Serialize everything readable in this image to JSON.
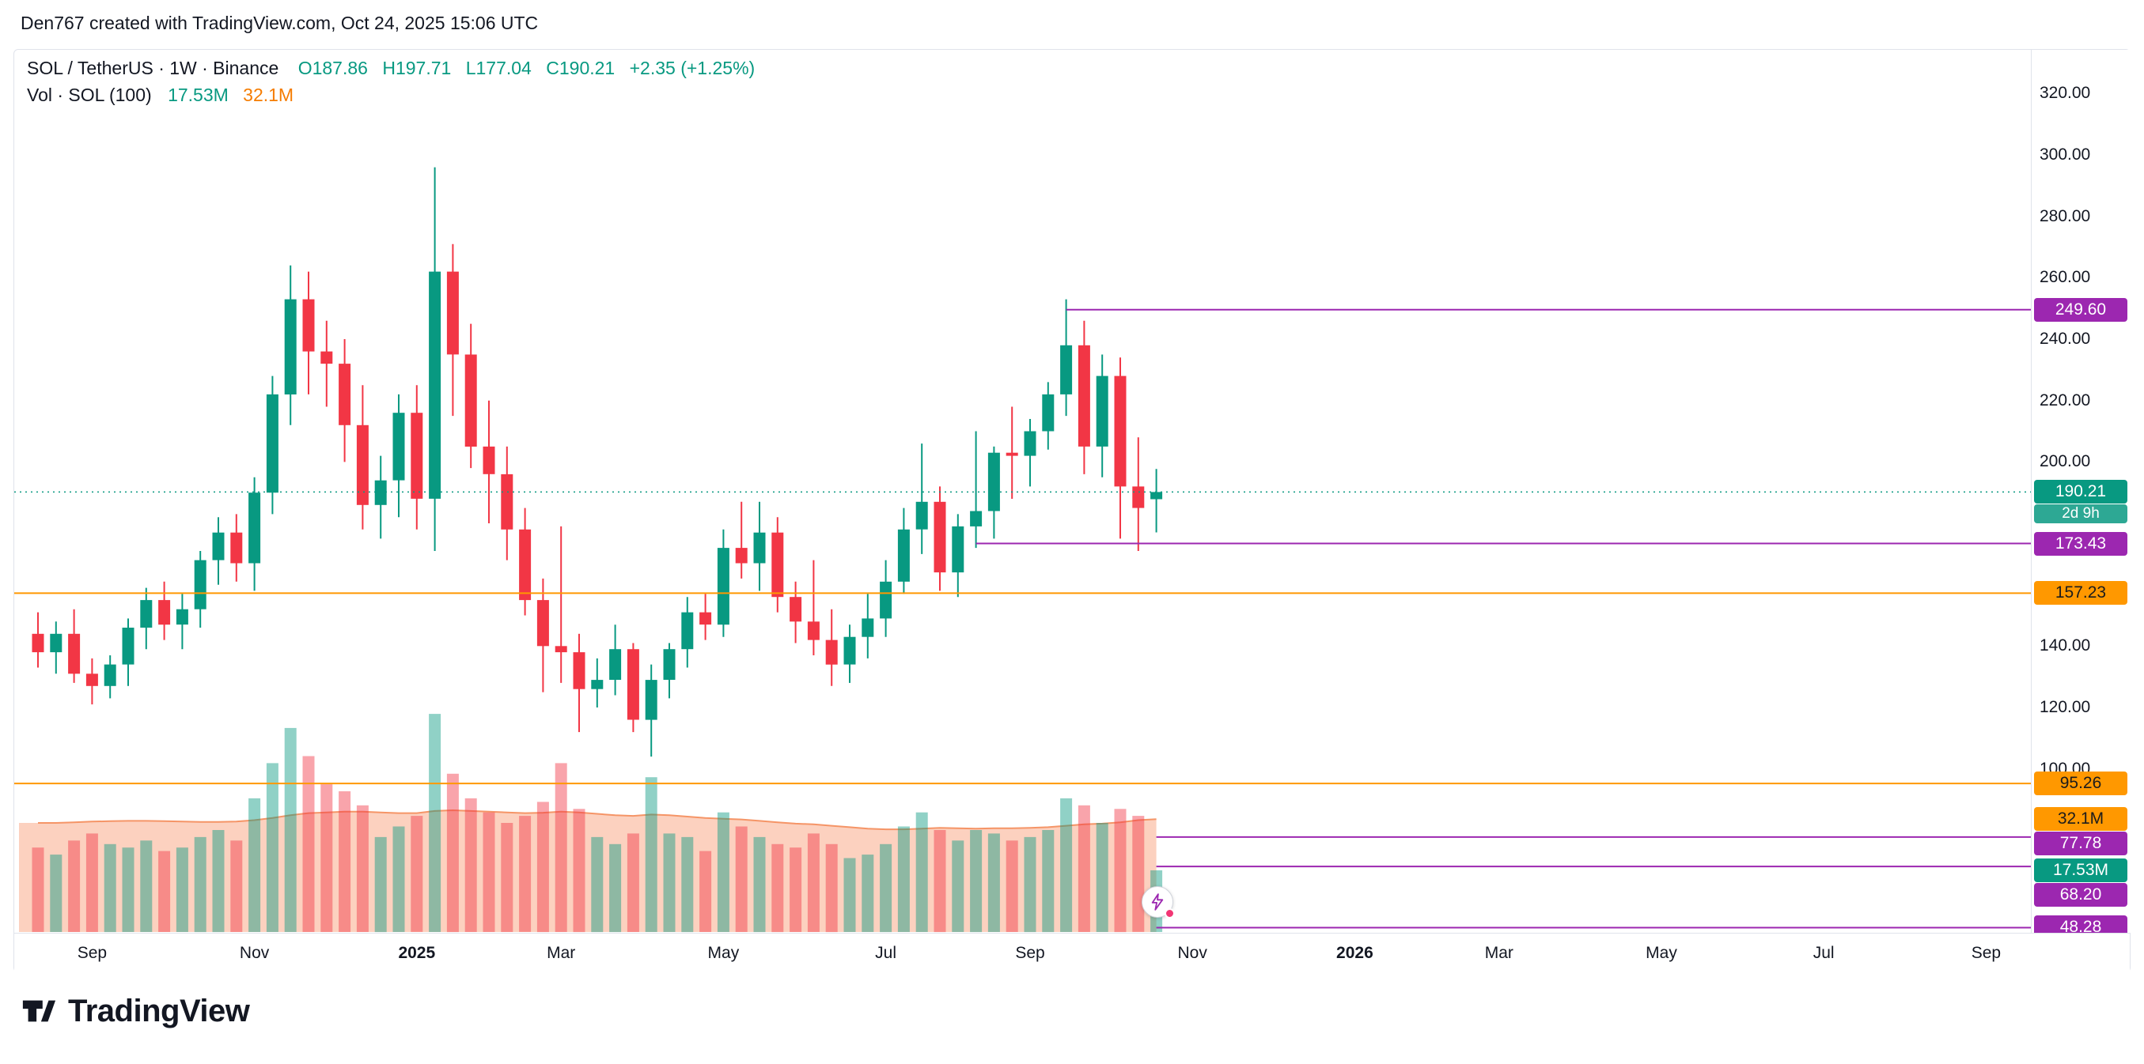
{
  "header": {
    "attribution": "Den767 created with TradingView.com, Oct 24, 2025 15:06 UTC"
  },
  "legend": {
    "title": "SOL / TetherUS · 1W · Binance",
    "ohlc": [
      {
        "label": "O",
        "value": "187.86"
      },
      {
        "label": "H",
        "value": "197.71"
      },
      {
        "label": "L",
        "value": "177.04"
      },
      {
        "label": "C",
        "value": "190.21"
      }
    ],
    "change": "+2.35 (+1.25%)",
    "volume_label": "Vol · SOL (100)",
    "volume_current": "17.53M",
    "volume_ma": "32.1M"
  },
  "price_axis": {
    "ticks": [
      320,
      300,
      280,
      260,
      240,
      220,
      200,
      140,
      120,
      100
    ],
    "badges": [
      {
        "text": "249.60",
        "kind": "purple",
        "price": 249.6
      },
      {
        "text": "190.21",
        "kind": "teal",
        "price": 190.21,
        "countdown": "2d 9h"
      },
      {
        "text": "173.43",
        "kind": "purple",
        "price": 173.43
      },
      {
        "text": "157.23",
        "kind": "orange",
        "price": 157.23
      },
      {
        "text": "95.26",
        "kind": "orange",
        "price": 95.26
      },
      {
        "text": "32.1M",
        "kind": "orange",
        "volume_m": 32.1
      },
      {
        "text": "77.78",
        "kind": "purple",
        "price": 77.78
      },
      {
        "text": "17.53M",
        "kind": "teal",
        "volume_m": 17.53
      },
      {
        "text": "68.20",
        "kind": "purple",
        "price": 68.2
      },
      {
        "text": "48.28",
        "kind": "purple",
        "price": 48.28
      }
    ]
  },
  "time_axis": {
    "labels": [
      {
        "text": "Sep",
        "week_index": 3
      },
      {
        "text": "Nov",
        "week_index": 12
      },
      {
        "text": "2025",
        "week_index": 21,
        "bold": true
      },
      {
        "text": "Mar",
        "week_index": 29
      },
      {
        "text": "May",
        "week_index": 38
      },
      {
        "text": "Jul",
        "week_index": 47
      },
      {
        "text": "Sep",
        "week_index": 55
      },
      {
        "text": "Nov",
        "week_index": 64
      },
      {
        "text": "2026",
        "week_index": 73,
        "bold": true
      },
      {
        "text": "Mar",
        "week_index": 81
      },
      {
        "text": "May",
        "week_index": 90
      },
      {
        "text": "Jul",
        "week_index": 99
      },
      {
        "text": "Sep",
        "week_index": 108
      }
    ]
  },
  "footer": {
    "brand": "TradingView"
  },
  "colors": {
    "up": "#089981",
    "down": "#f23645",
    "vol_up": "rgba(8,153,129,0.45)",
    "vol_down": "rgba(242,54,69,0.45)",
    "vol_ma_fill": "rgba(245,124,72,0.35)",
    "vol_ma_line": "rgba(244,140,90,0.9)",
    "purple": "#9c27b0",
    "orange": "#ff9800",
    "axis_text": "#131722"
  },
  "chart_data": {
    "type": "candlestick",
    "symbol": "SOL/USDT",
    "exchange": "Binance",
    "interval": "1W",
    "title": "SOL / TetherUS · 1W · Binance",
    "current_price": 190.21,
    "countdown": "2d 9h",
    "ohlc_current": {
      "open": 187.86,
      "high": 197.71,
      "low": 177.04,
      "close": 190.21,
      "change": 2.35,
      "change_pct": 1.25
    },
    "volume_current_m": 17.53,
    "volume_ma_current_m": 32.1,
    "y_axis_ticks": [
      320,
      300,
      280,
      260,
      240,
      220,
      200,
      140,
      120,
      100
    ],
    "candles_format": [
      "week_start",
      "open",
      "high",
      "low",
      "close"
    ],
    "candles": [
      [
        "2024-08-12",
        144,
        151,
        133,
        138
      ],
      [
        "2024-08-19",
        138,
        148,
        131,
        144
      ],
      [
        "2024-08-26",
        144,
        152,
        128,
        131
      ],
      [
        "2024-09-02",
        131,
        136,
        121,
        127
      ],
      [
        "2024-09-09",
        127,
        137,
        123,
        134
      ],
      [
        "2024-09-16",
        134,
        149,
        127,
        146
      ],
      [
        "2024-09-23",
        146,
        159,
        139,
        155
      ],
      [
        "2024-09-30",
        155,
        161,
        142,
        147
      ],
      [
        "2024-10-07",
        147,
        157,
        139,
        152
      ],
      [
        "2024-10-14",
        152,
        171,
        146,
        168
      ],
      [
        "2024-10-21",
        168,
        182,
        160,
        177
      ],
      [
        "2024-10-28",
        177,
        183,
        161,
        167
      ],
      [
        "2024-11-04",
        167,
        195,
        158,
        190
      ],
      [
        "2024-11-11",
        190,
        228,
        183,
        222
      ],
      [
        "2024-11-18",
        222,
        264,
        212,
        253
      ],
      [
        "2024-11-25",
        253,
        262,
        222,
        236
      ],
      [
        "2024-12-02",
        236,
        246,
        218,
        232
      ],
      [
        "2024-12-09",
        232,
        240,
        200,
        212
      ],
      [
        "2024-12-16",
        212,
        225,
        178,
        186
      ],
      [
        "2024-12-23",
        186,
        202,
        175,
        194
      ],
      [
        "2024-12-30",
        194,
        222,
        182,
        216
      ],
      [
        "2025-01-06",
        216,
        225,
        178,
        188
      ],
      [
        "2025-01-13",
        188,
        296,
        171,
        262
      ],
      [
        "2025-01-20",
        262,
        271,
        215,
        235
      ],
      [
        "2025-01-27",
        235,
        245,
        198,
        205
      ],
      [
        "2025-02-03",
        205,
        220,
        180,
        196
      ],
      [
        "2025-02-10",
        196,
        205,
        168,
        178
      ],
      [
        "2025-02-17",
        178,
        185,
        150,
        155
      ],
      [
        "2025-02-24",
        155,
        162,
        125,
        140
      ],
      [
        "2025-03-03",
        140,
        179,
        128,
        138
      ],
      [
        "2025-03-10",
        138,
        144,
        112,
        126
      ],
      [
        "2025-03-17",
        126,
        136,
        120,
        129
      ],
      [
        "2025-03-24",
        129,
        147,
        124,
        139
      ],
      [
        "2025-03-31",
        139,
        141,
        112,
        116
      ],
      [
        "2025-04-07",
        116,
        134,
        104,
        129
      ],
      [
        "2025-04-14",
        129,
        141,
        123,
        139
      ],
      [
        "2025-04-21",
        139,
        156,
        133,
        151
      ],
      [
        "2025-04-28",
        151,
        157,
        142,
        147
      ],
      [
        "2025-05-05",
        147,
        178,
        143,
        172
      ],
      [
        "2025-05-12",
        172,
        187,
        162,
        167
      ],
      [
        "2025-05-19",
        167,
        187,
        158,
        177
      ],
      [
        "2025-05-26",
        177,
        182,
        151,
        156
      ],
      [
        "2025-06-02",
        156,
        161,
        141,
        148
      ],
      [
        "2025-06-09",
        148,
        168,
        137,
        142
      ],
      [
        "2025-06-16",
        142,
        152,
        127,
        134
      ],
      [
        "2025-06-23",
        134,
        147,
        128,
        143
      ],
      [
        "2025-06-30",
        143,
        157,
        136,
        149
      ],
      [
        "2025-07-07",
        149,
        168,
        143,
        161
      ],
      [
        "2025-07-14",
        161,
        185,
        157,
        178
      ],
      [
        "2025-07-21",
        178,
        206,
        170,
        187
      ],
      [
        "2025-07-28",
        187,
        192,
        158,
        164
      ],
      [
        "2025-08-04",
        164,
        183,
        156,
        179
      ],
      [
        "2025-08-11",
        179,
        210,
        172,
        184
      ],
      [
        "2025-08-18",
        184,
        205,
        175,
        203
      ],
      [
        "2025-08-25",
        203,
        218,
        188,
        202
      ],
      [
        "2025-09-01",
        202,
        214,
        192,
        210
      ],
      [
        "2025-09-08",
        210,
        226,
        204,
        222
      ],
      [
        "2025-09-15",
        222,
        253,
        215,
        238
      ],
      [
        "2025-09-22",
        238,
        246,
        196,
        205
      ],
      [
        "2025-09-29",
        205,
        235,
        195,
        228
      ],
      [
        "2025-10-06",
        228,
        234,
        175,
        192
      ],
      [
        "2025-10-13",
        192,
        208,
        171,
        185
      ],
      [
        "2025-10-20",
        187.86,
        197.71,
        177.04,
        190.21
      ]
    ],
    "volumes_m": [
      24,
      22,
      26,
      28,
      25,
      24,
      26,
      23,
      24,
      27,
      29,
      26,
      38,
      48,
      58,
      50,
      42,
      40,
      36,
      27,
      30,
      33,
      62,
      45,
      38,
      34,
      31,
      33,
      37,
      48,
      35,
      27,
      25,
      28,
      44,
      28,
      27,
      23,
      34,
      30,
      27,
      25,
      24,
      28,
      25,
      21,
      22,
      25,
      30,
      34,
      29,
      26,
      29,
      28,
      26,
      27,
      29,
      38,
      36,
      31,
      35,
      33,
      17.53
    ],
    "vol_ma_m": [
      31.0,
      31.0,
      31.2,
      31.4,
      31.5,
      31.6,
      31.6,
      31.5,
      31.4,
      31.3,
      31.3,
      31.4,
      31.8,
      32.4,
      33.2,
      33.8,
      34.0,
      34.2,
      34.2,
      34.0,
      33.8,
      33.8,
      34.4,
      34.6,
      34.4,
      34.2,
      34.0,
      33.8,
      33.9,
      34.2,
      34.0,
      33.6,
      33.2,
      33.0,
      33.4,
      33.2,
      32.8,
      32.4,
      32.2,
      32.0,
      31.6,
      31.2,
      30.8,
      30.6,
      30.2,
      29.8,
      29.4,
      29.2,
      29.2,
      29.4,
      29.6,
      29.5,
      29.4,
      29.5,
      29.5,
      29.6,
      29.8,
      30.2,
      30.6,
      30.8,
      31.2,
      31.8,
      32.1
    ],
    "levels": [
      {
        "price": 249.6,
        "color": "#9c27b0",
        "start_week_index": 57
      },
      {
        "price": 173.43,
        "color": "#9c27b0",
        "start_week_index": 52
      },
      {
        "price": 157.23,
        "color": "#ff9800",
        "start_week_index": 0
      },
      {
        "price": 95.26,
        "color": "#ff9800",
        "start_week_index": 0
      },
      {
        "price": 77.78,
        "color": "#9c27b0",
        "start_week_index": 62
      },
      {
        "price": 68.2,
        "color": "#9c27b0",
        "start_week_index": 62
      },
      {
        "price": 48.28,
        "color": "#9c27b0",
        "start_week_index": 62
      }
    ]
  }
}
